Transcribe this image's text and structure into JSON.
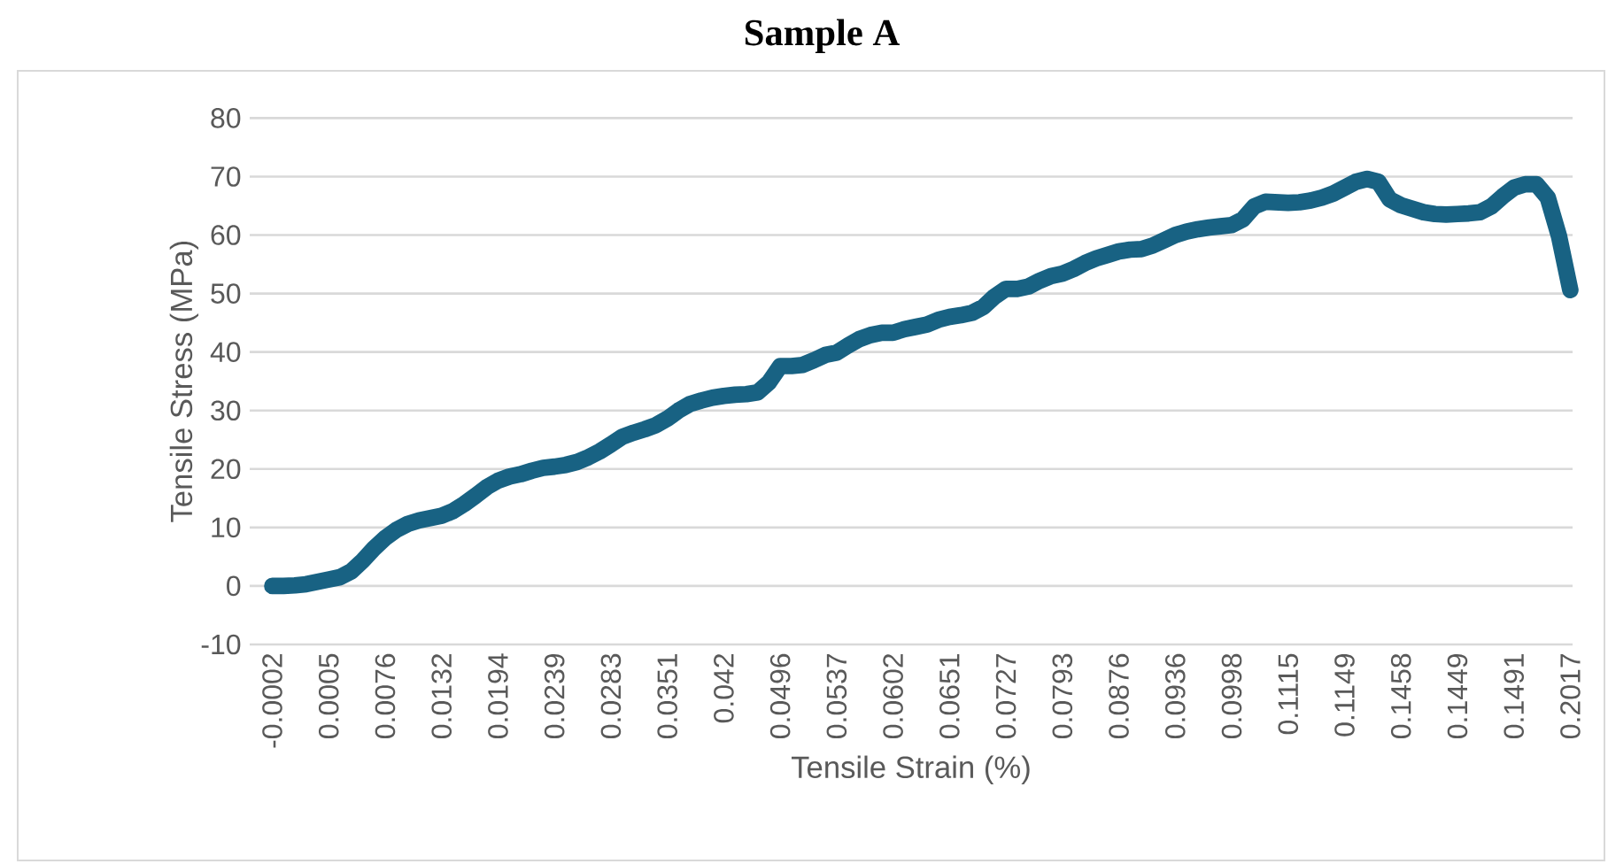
{
  "chart_data": {
    "type": "line",
    "title": "Sample A",
    "xlabel": "Tensile Strain (%)",
    "ylabel": "Tensile Stress (MPa)",
    "categories": [
      "-0.0002",
      null,
      null,
      null,
      null,
      "0.0005",
      null,
      null,
      null,
      null,
      "0.0076",
      null,
      null,
      null,
      null,
      "0.0132",
      null,
      null,
      null,
      null,
      "0.0194",
      null,
      null,
      null,
      null,
      "0.0239",
      null,
      null,
      null,
      null,
      "0.0283",
      null,
      null,
      null,
      null,
      "0.0351",
      null,
      null,
      null,
      null,
      "0.042",
      null,
      null,
      null,
      null,
      "0.0496",
      null,
      null,
      null,
      null,
      "0.0537",
      null,
      null,
      null,
      null,
      "0.0602",
      null,
      null,
      null,
      null,
      "0.0651",
      null,
      null,
      null,
      null,
      "0.0727",
      null,
      null,
      null,
      null,
      "0.0793",
      null,
      null,
      null,
      null,
      "0.0876",
      null,
      null,
      null,
      null,
      "0.0936",
      null,
      null,
      null,
      null,
      "0.0998",
      null,
      null,
      null,
      null,
      "0.1115",
      null,
      null,
      null,
      null,
      "0.1149",
      null,
      null,
      null,
      null,
      "0.1458",
      null,
      null,
      null,
      null,
      "0.1449",
      null,
      null,
      null,
      null,
      "0.1491",
      null,
      null,
      null,
      null,
      "0.2017"
    ],
    "series": [
      {
        "color": "#186283",
        "values": [
          0,
          0,
          0.1,
          0.3,
          0.7,
          1.1,
          1.5,
          2.5,
          4.3,
          6.4,
          8.2,
          9.6,
          10.6,
          11.2,
          11.6,
          12.0,
          12.8,
          14.0,
          15.4,
          16.9,
          18.0,
          18.7,
          19.1,
          19.7,
          20.2,
          20.4,
          20.7,
          21.2,
          22.0,
          23.0,
          24.2,
          25.5,
          26.2,
          26.8,
          27.5,
          28.6,
          30.0,
          31.1,
          31.7,
          32.2,
          32.5,
          32.7,
          32.8,
          33.1,
          34.8,
          37.6,
          37.6,
          37.8,
          38.6,
          39.5,
          39.9,
          41.1,
          42.2,
          42.9,
          43.3,
          43.3,
          43.9,
          44.3,
          44.7,
          45.5,
          46.0,
          46.3,
          46.7,
          47.7,
          49.5,
          50.8,
          50.8,
          51.2,
          52.2,
          53.0,
          53.4,
          54.2,
          55.2,
          56.0,
          56.6,
          57.2,
          57.5,
          57.6,
          58.2,
          59.1,
          60.0,
          60.6,
          61.0,
          61.3,
          61.5,
          61.7,
          62.7,
          64.9,
          65.7,
          65.6,
          65.5,
          65.6,
          65.9,
          66.4,
          67.1,
          68.1,
          69.1,
          69.6,
          69.1,
          66.1,
          65.1,
          64.5,
          63.9,
          63.6,
          63.5,
          63.6,
          63.7,
          63.9,
          64.9,
          66.6,
          68.1,
          68.7,
          68.7,
          66.4,
          59.8,
          50.6
        ]
      }
    ],
    "ylim": [
      -10,
      80
    ],
    "yticks": [
      -10,
      0,
      10,
      20,
      30,
      40,
      50,
      60,
      70,
      80
    ],
    "grid": "y",
    "line_style": "solid"
  }
}
